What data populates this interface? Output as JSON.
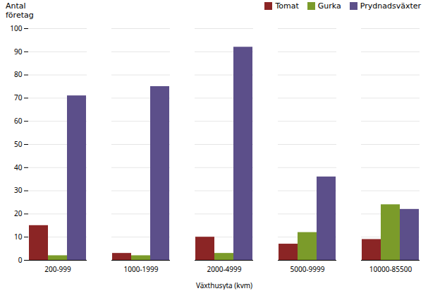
{
  "chart_data": {
    "type": "bar",
    "categories": [
      "200-999",
      "1000-1999",
      "2000-4999",
      "5000-9999",
      "10000-85500"
    ],
    "series": [
      {
        "name": "Tomat",
        "color": "#8B2525",
        "values": [
          15,
          3,
          10,
          7,
          9
        ]
      },
      {
        "name": "Gurka",
        "color": "#7B9B2A",
        "values": [
          2,
          2,
          3,
          12,
          24
        ]
      },
      {
        "name": "Prydnadsväxter",
        "color": "#5C4F8A",
        "values": [
          71,
          75,
          92,
          36,
          22
        ]
      }
    ],
    "xlabel": "Växthusyta (kvm)",
    "ylabel": "Antal\nföretag",
    "ylim": [
      0,
      100
    ],
    "yticks": [
      0,
      10,
      20,
      30,
      40,
      50,
      60,
      70,
      80,
      90,
      100
    ],
    "grid": true,
    "legend": "upper right"
  }
}
